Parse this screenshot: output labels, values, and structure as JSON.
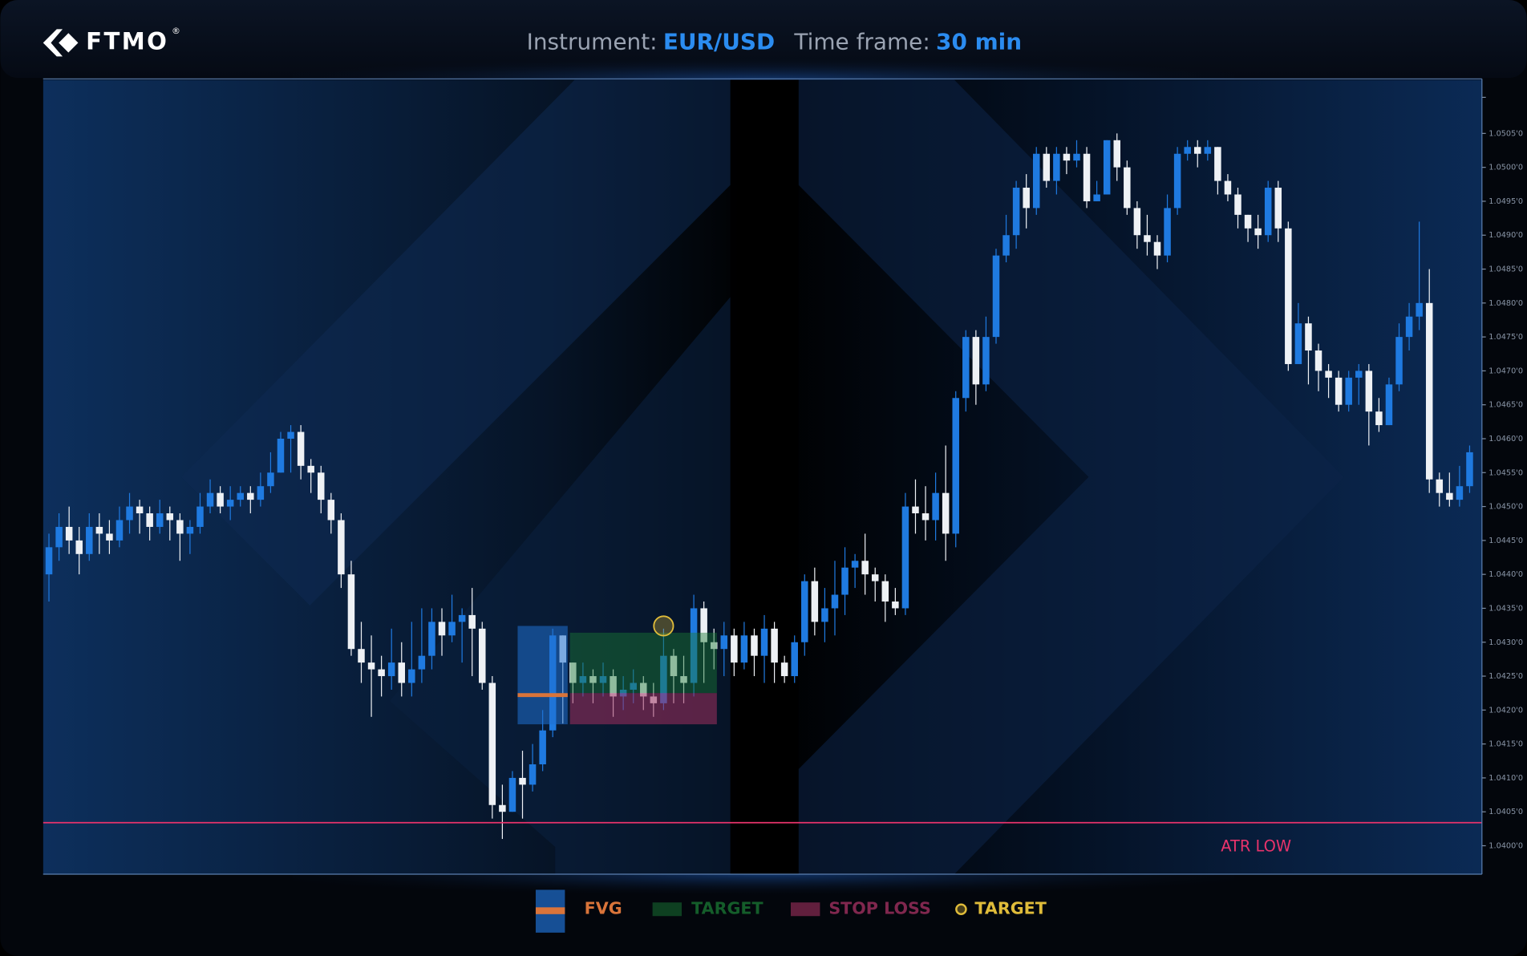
{
  "logo": {
    "text": "FTMO",
    "mark": "®"
  },
  "header": {
    "instrument_label": "Instrument:",
    "instrument": "EUR/USD",
    "timeframe_label": "Time frame:",
    "timeframe": "30 min"
  },
  "chart_data": {
    "type": "candlestick",
    "open": [
      1.044,
      1.0444,
      1.0447,
      1.0445,
      1.0443,
      1.0447,
      1.0446,
      1.0445,
      1.0448,
      1.045,
      1.0449,
      1.0447,
      1.0449,
      1.0448,
      1.0446,
      1.0447,
      1.045,
      1.0452,
      1.045,
      1.0451,
      1.0452,
      1.0451,
      1.0453,
      1.0455,
      1.046,
      1.0461,
      1.0456,
      1.0455,
      1.0451,
      1.0448,
      1.044,
      1.0429,
      1.0427,
      1.0426,
      1.0425,
      1.0427,
      1.0424,
      1.0426,
      1.0428,
      1.0433,
      1.0431,
      1.0433,
      1.0434,
      1.0432,
      1.0424,
      1.0406,
      1.0405,
      1.041,
      1.0409,
      1.0412,
      1.0417,
      1.0431,
      1.0427,
      1.0424,
      1.0425,
      1.0424,
      1.0425,
      1.0422,
      1.0423,
      1.0424,
      1.0422,
      1.0421,
      1.0428,
      1.0425,
      1.0424,
      1.0435,
      1.043,
      1.0429,
      1.0431,
      1.0427,
      1.0431,
      1.0428,
      1.0432,
      1.0427,
      1.0425,
      1.043,
      1.0439,
      1.0433,
      1.0435,
      1.0437,
      1.0441,
      1.0442,
      1.044,
      1.0439,
      1.0436,
      1.0435,
      1.045,
      1.0449,
      1.0448,
      1.0452,
      1.0446,
      1.0466,
      1.0475,
      1.0468,
      1.0475,
      1.0487,
      1.049,
      1.0497,
      1.0494,
      1.0502,
      1.0498,
      1.0502,
      1.0501,
      1.0502,
      1.0495,
      1.0496,
      1.0504,
      1.05,
      1.0494,
      1.049,
      1.0489,
      1.0487,
      1.0494,
      1.0502,
      1.0503,
      1.0502,
      1.0503,
      1.0498,
      1.0496,
      1.0493,
      1.0491,
      1.049,
      1.0497,
      1.0491,
      1.0471,
      1.0477,
      1.0473,
      1.047,
      1.0469,
      1.0465,
      1.0469,
      1.047,
      1.0464,
      1.0462,
      1.0468,
      1.0475,
      1.0478,
      1.048,
      1.0454,
      1.0452,
      1.0451,
      1.0453
    ],
    "high": [
      1.0446,
      1.0449,
      1.045,
      1.0447,
      1.0449,
      1.0449,
      1.0448,
      1.045,
      1.0452,
      1.0451,
      1.045,
      1.0451,
      1.045,
      1.0449,
      1.0448,
      1.0452,
      1.0454,
      1.0453,
      1.0453,
      1.0453,
      1.0453,
      1.0455,
      1.0458,
      1.0461,
      1.0462,
      1.0462,
      1.0457,
      1.0456,
      1.0452,
      1.0449,
      1.0442,
      1.0433,
      1.0431,
      1.0428,
      1.0432,
      1.043,
      1.0433,
      1.0435,
      1.0435,
      1.0435,
      1.0437,
      1.0435,
      1.0438,
      1.0433,
      1.0425,
      1.0409,
      1.0411,
      1.0414,
      1.0415,
      1.042,
      1.0432,
      1.0431,
      1.0427,
      1.0427,
      1.0426,
      1.0427,
      1.0426,
      1.0425,
      1.0426,
      1.0425,
      1.0424,
      1.0432,
      1.0429,
      1.0428,
      1.0437,
      1.0436,
      1.0432,
      1.0433,
      1.0432,
      1.0433,
      1.0432,
      1.0434,
      1.0433,
      1.0428,
      1.0431,
      1.044,
      1.0441,
      1.0438,
      1.0442,
      1.0444,
      1.0443,
      1.0446,
      1.0441,
      1.044,
      1.0438,
      1.0452,
      1.0454,
      1.0453,
      1.0455,
      1.0459,
      1.0467,
      1.0476,
      1.0476,
      1.0478,
      1.0488,
      1.0493,
      1.0498,
      1.0499,
      1.0503,
      1.0503,
      1.0503,
      1.0503,
      1.0504,
      1.0503,
      1.0498,
      1.0504,
      1.0505,
      1.0501,
      1.0495,
      1.0493,
      1.049,
      1.0496,
      1.0503,
      1.0504,
      1.0504,
      1.0504,
      1.0503,
      1.0499,
      1.0497,
      1.0493,
      1.0493,
      1.0498,
      1.0498,
      1.0492,
      1.048,
      1.0478,
      1.0474,
      1.0471,
      1.047,
      1.047,
      1.0471,
      1.0471,
      1.0466,
      1.0469,
      1.0477,
      1.048,
      1.0492,
      1.0485,
      1.0455,
      1.0455,
      1.0456,
      1.0459
    ],
    "low": [
      1.0436,
      1.0442,
      1.0443,
      1.044,
      1.0442,
      1.0443,
      1.0443,
      1.0444,
      1.0446,
      1.0446,
      1.0445,
      1.0446,
      1.0445,
      1.0442,
      1.0443,
      1.0446,
      1.0449,
      1.0449,
      1.0448,
      1.045,
      1.0449,
      1.045,
      1.0452,
      1.0455,
      1.0455,
      1.0454,
      1.0452,
      1.0449,
      1.0446,
      1.0438,
      1.0428,
      1.0424,
      1.0419,
      1.0422,
      1.0423,
      1.0422,
      1.0422,
      1.0424,
      1.0426,
      1.0428,
      1.043,
      1.0427,
      1.0425,
      1.0423,
      1.0404,
      1.0401,
      1.0405,
      1.0404,
      1.0408,
      1.0411,
      1.0416,
      1.0418,
      1.0421,
      1.0422,
      1.0421,
      1.0422,
      1.0419,
      1.042,
      1.0421,
      1.042,
      1.0419,
      1.042,
      1.0421,
      1.0421,
      1.0422,
      1.0424,
      1.0426,
      1.0425,
      1.0425,
      1.0426,
      1.0425,
      1.0424,
      1.0424,
      1.0424,
      1.0424,
      1.0428,
      1.0431,
      1.043,
      1.0431,
      1.0434,
      1.0438,
      1.0437,
      1.0436,
      1.0433,
      1.0434,
      1.0434,
      1.0446,
      1.0445,
      1.0445,
      1.0442,
      1.0444,
      1.0464,
      1.0465,
      1.0467,
      1.0474,
      1.0486,
      1.0488,
      1.0491,
      1.0493,
      1.0497,
      1.0496,
      1.0499,
      1.05,
      1.0494,
      1.0495,
      1.0496,
      1.0498,
      1.0493,
      1.0488,
      1.0487,
      1.0485,
      1.0486,
      1.0493,
      1.0501,
      1.05,
      1.0501,
      1.0496,
      1.0495,
      1.0491,
      1.0489,
      1.0488,
      1.0489,
      1.0489,
      1.047,
      1.0471,
      1.0468,
      1.0467,
      1.0466,
      1.0464,
      1.0464,
      1.0465,
      1.0459,
      1.0461,
      1.0462,
      1.0467,
      1.0473,
      1.0476,
      1.0452,
      1.045,
      1.045,
      1.045,
      1.0452
    ],
    "close": [
      1.0444,
      1.0447,
      1.0445,
      1.0443,
      1.0447,
      1.0446,
      1.0445,
      1.0448,
      1.045,
      1.0449,
      1.0447,
      1.0449,
      1.0448,
      1.0446,
      1.0447,
      1.045,
      1.0452,
      1.045,
      1.0451,
      1.0452,
      1.0451,
      1.0453,
      1.0455,
      1.046,
      1.0461,
      1.0456,
      1.0455,
      1.0451,
      1.0448,
      1.044,
      1.0429,
      1.0427,
      1.0426,
      1.0425,
      1.0427,
      1.0424,
      1.0426,
      1.0428,
      1.0433,
      1.0431,
      1.0433,
      1.0434,
      1.0432,
      1.0424,
      1.0406,
      1.0405,
      1.041,
      1.0409,
      1.0412,
      1.0417,
      1.0431,
      1.0427,
      1.0424,
      1.0425,
      1.0424,
      1.0425,
      1.0422,
      1.0423,
      1.0424,
      1.0422,
      1.0421,
      1.0428,
      1.0425,
      1.0424,
      1.0435,
      1.043,
      1.0429,
      1.0431,
      1.0427,
      1.0431,
      1.0428,
      1.0432,
      1.0427,
      1.0425,
      1.043,
      1.0439,
      1.0433,
      1.0435,
      1.0437,
      1.0441,
      1.0442,
      1.044,
      1.0439,
      1.0436,
      1.0435,
      1.045,
      1.0449,
      1.0448,
      1.0452,
      1.0446,
      1.0466,
      1.0475,
      1.0468,
      1.0475,
      1.0487,
      1.049,
      1.0497,
      1.0494,
      1.0502,
      1.0498,
      1.0502,
      1.0501,
      1.0502,
      1.0495,
      1.0496,
      1.0504,
      1.05,
      1.0494,
      1.049,
      1.0489,
      1.0487,
      1.0494,
      1.0502,
      1.0503,
      1.0502,
      1.0503,
      1.0498,
      1.0496,
      1.0493,
      1.0491,
      1.049,
      1.0497,
      1.0491,
      1.0471,
      1.0477,
      1.0473,
      1.047,
      1.0469,
      1.0465,
      1.0469,
      1.047,
      1.0464,
      1.0462,
      1.0468,
      1.0475,
      1.0478,
      1.048,
      1.0454,
      1.0452,
      1.0451,
      1.0453,
      1.0458
    ],
    "up_color": "#1f7ae0",
    "down_color": "#eef1f5",
    "ylim": [
      1.03958,
      1.05129
    ],
    "yticks": [
      {
        "value": 1.04,
        "label": "1.0400'0"
      },
      {
        "value": 1.0405,
        "label": "1.0405'0"
      },
      {
        "value": 1.041,
        "label": "1.0410'0"
      },
      {
        "value": 1.0415,
        "label": "1.0415'0"
      },
      {
        "value": 1.042,
        "label": "1.0420'0"
      },
      {
        "value": 1.0425,
        "label": "1.0425'0"
      },
      {
        "value": 1.043,
        "label": "1.0430'0"
      },
      {
        "value": 1.0435,
        "label": "1.0435'0"
      },
      {
        "value": 1.044,
        "label": "1.0440'0"
      },
      {
        "value": 1.0445,
        "label": "1.0445'0"
      },
      {
        "value": 1.045,
        "label": "1.0450'0"
      },
      {
        "value": 1.0455,
        "label": "1.0455'0"
      },
      {
        "value": 1.046,
        "label": "1.0460'0"
      },
      {
        "value": 1.0465,
        "label": "1.0465'0"
      },
      {
        "value": 1.047,
        "label": "1.0470'0"
      },
      {
        "value": 1.0475,
        "label": "1.0475'0"
      },
      {
        "value": 1.048,
        "label": "1.0480'0"
      },
      {
        "value": 1.0485,
        "label": "1.0485'0"
      },
      {
        "value": 1.049,
        "label": "1.0490'0"
      },
      {
        "value": 1.0495,
        "label": "1.0495'0"
      },
      {
        "value": 1.05,
        "label": "1.0500'0"
      },
      {
        "value": 1.0505,
        "label": "1.0505'0"
      }
    ],
    "atr_low": {
      "name": "ATR LOW",
      "value": 1.04034,
      "color": "#e8336b"
    },
    "fvg": {
      "name": "FVG",
      "top": 1.04324,
      "bottom": 1.04179,
      "mid": 1.04222,
      "color": "#1f6fd0",
      "line_color": "#d9743a"
    },
    "target_zone": {
      "name": "TARGET",
      "top": 1.04314,
      "bottom": 1.04225,
      "color": "#1a7a35"
    },
    "stop_zone": {
      "name": "STOP LOSS",
      "top": 1.04225,
      "bottom": 1.04179,
      "color": "#a0305f"
    },
    "target_point": {
      "name": "TARGET",
      "value": 1.04324,
      "color": "#e0bc3a"
    }
  }
}
